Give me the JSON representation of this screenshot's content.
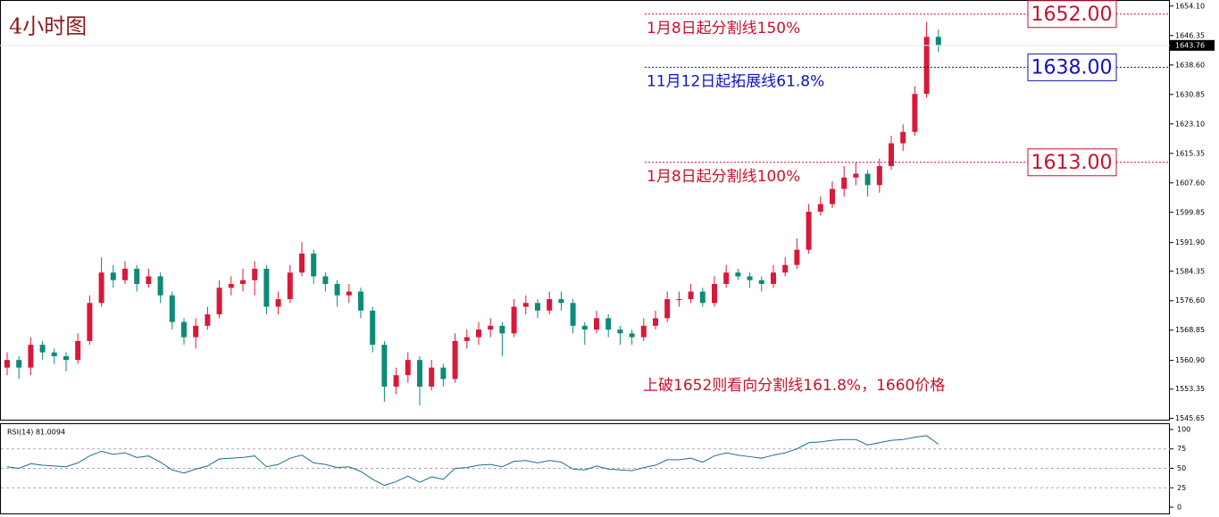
{
  "chart_data": [
    {
      "type": "candlestick",
      "title": "4小时图",
      "up_color": "#d7193a",
      "down_color": "#0e8a78",
      "open": [
        1559,
        1561,
        1559,
        1565,
        1563,
        1562,
        1561,
        1566,
        1576,
        1584,
        1582,
        1585,
        1581,
        1583,
        1578,
        1571,
        1567,
        1570,
        1573,
        1580,
        1581,
        1582,
        1585,
        1575,
        1577,
        1584,
        1589,
        1583,
        1581,
        1578,
        1579,
        1574,
        1565,
        1554,
        1557,
        1561,
        1554,
        1559,
        1556,
        1566,
        1567,
        1569,
        1570,
        1568,
        1575,
        1576,
        1574,
        1577,
        1576,
        1570,
        1569,
        1572,
        1569,
        1568,
        1567,
        1570,
        1572,
        1577,
        1577,
        1579,
        1576,
        1581,
        1584,
        1583,
        1582,
        1581,
        1584,
        1586,
        1590,
        1600,
        1602,
        1606,
        1609,
        1610,
        1607,
        1612,
        1618,
        1621,
        1631,
        1646
      ],
      "high": [
        1563,
        1562,
        1567,
        1566,
        1564,
        1563,
        1568,
        1578,
        1588,
        1586,
        1587,
        1586,
        1585,
        1584,
        1579,
        1572,
        1572,
        1575,
        1582,
        1583,
        1585,
        1587,
        1586,
        1579,
        1586,
        1592,
        1590,
        1584,
        1582,
        1581,
        1580,
        1575,
        1566,
        1559,
        1563,
        1562,
        1561,
        1560,
        1568,
        1569,
        1571,
        1572,
        1571,
        1577,
        1578,
        1577,
        1579,
        1579,
        1577,
        1571,
        1574,
        1573,
        1570,
        1569,
        1572,
        1574,
        1579,
        1579,
        1581,
        1580,
        1583,
        1586,
        1585,
        1584,
        1583,
        1586,
        1588,
        1593,
        1602,
        1604,
        1608,
        1612,
        1613,
        1611,
        1614,
        1620,
        1623,
        1633,
        1650,
        1648
      ],
      "low": [
        1557,
        1556,
        1557,
        1561,
        1560,
        1558,
        1560,
        1565,
        1575,
        1580,
        1581,
        1579,
        1580,
        1576,
        1569,
        1565,
        1564,
        1569,
        1572,
        1578,
        1579,
        1578,
        1573,
        1573,
        1576,
        1583,
        1581,
        1579,
        1575,
        1576,
        1572,
        1563,
        1550,
        1552,
        1555,
        1549,
        1553,
        1554,
        1555,
        1564,
        1565,
        1567,
        1562,
        1567,
        1573,
        1572,
        1573,
        1574,
        1568,
        1565,
        1568,
        1567,
        1565,
        1565,
        1566,
        1569,
        1571,
        1575,
        1576,
        1575,
        1575,
        1580,
        1582,
        1580,
        1579,
        1580,
        1583,
        1585,
        1589,
        1599,
        1601,
        1604,
        1607,
        1604,
        1605,
        1611,
        1616,
        1620,
        1630,
        1642
      ],
      "close": [
        1561,
        1559,
        1565,
        1563,
        1562,
        1561,
        1566,
        1576,
        1584,
        1582,
        1585,
        1581,
        1583,
        1578,
        1571,
        1567,
        1570,
        1573,
        1580,
        1581,
        1582,
        1585,
        1575,
        1577,
        1584,
        1589,
        1583,
        1581,
        1578,
        1579,
        1574,
        1565,
        1554,
        1557,
        1561,
        1554,
        1559,
        1556,
        1566,
        1567,
        1569,
        1570,
        1568,
        1575,
        1576,
        1574,
        1577,
        1576,
        1570,
        1569,
        1572,
        1569,
        1568,
        1567,
        1570,
        1572,
        1577,
        1577,
        1579,
        1576,
        1581,
        1584,
        1583,
        1582,
        1581,
        1584,
        1586,
        1590,
        1600,
        1602,
        1606,
        1609,
        1610,
        1607,
        1612,
        1618,
        1621,
        1631,
        1646,
        1643.76
      ],
      "ylim": [
        1545.3,
        1655.7
      ],
      "yticks": [
        {
          "value": 1654.1,
          "label": "1654.10"
        },
        {
          "value": 1646.35,
          "label": "1646.35"
        },
        {
          "value": 1638.6,
          "label": "1638.60"
        },
        {
          "value": 1630.85,
          "label": "1630.85"
        },
        {
          "value": 1623.1,
          "label": "1623.10"
        },
        {
          "value": 1615.35,
          "label": "1615.35"
        },
        {
          "value": 1607.6,
          "label": "1607.60"
        },
        {
          "value": 1599.85,
          "label": "1599.85"
        },
        {
          "value": 1591.9,
          "label": "1591.90"
        },
        {
          "value": 1584.35,
          "label": "1584.35"
        },
        {
          "value": 1576.6,
          "label": "1576.60"
        },
        {
          "value": 1568.85,
          "label": "1568.85"
        },
        {
          "value": 1560.9,
          "label": "1560.90"
        },
        {
          "value": 1553.35,
          "label": "1553.35"
        },
        {
          "value": 1545.65,
          "label": "1545.65"
        }
      ],
      "last_price": {
        "value": 1643.76,
        "label": "1643.76"
      },
      "levels": [
        {
          "value": 1652,
          "label": "1652.00",
          "text": "1月8日起分割线150%",
          "color": "#c8102e"
        },
        {
          "value": 1638,
          "label": "1638.00",
          "text": "11月12日起拓展线61.8%",
          "color": "#1010c8"
        },
        {
          "value": 1613,
          "label": "1613.00",
          "text": "1月8日起分割线100%",
          "color": "#c8102e"
        }
      ],
      "annotation": "上破1652则看向分割线161.8%，1660价格"
    },
    {
      "type": "line",
      "title": "RSI(14) 81.0094",
      "color": "#1b6f8a",
      "values": [
        52,
        50,
        56,
        54,
        53,
        52,
        57,
        66,
        72,
        68,
        70,
        64,
        66,
        58,
        48,
        44,
        49,
        53,
        62,
        63,
        64,
        66,
        52,
        55,
        63,
        67,
        57,
        55,
        51,
        52,
        46,
        36,
        28,
        33,
        40,
        32,
        39,
        36,
        50,
        51,
        54,
        55,
        52,
        59,
        60,
        57,
        60,
        58,
        49,
        48,
        53,
        49,
        48,
        47,
        51,
        54,
        61,
        61,
        63,
        58,
        66,
        70,
        67,
        65,
        63,
        67,
        70,
        75,
        83,
        84,
        86,
        87,
        87,
        80,
        83,
        86,
        87,
        90,
        92,
        81.0094
      ],
      "ylim": [
        -8,
        108
      ],
      "yticks": [
        100,
        75,
        50,
        25,
        0
      ],
      "grid": [
        75,
        50,
        25
      ]
    }
  ]
}
